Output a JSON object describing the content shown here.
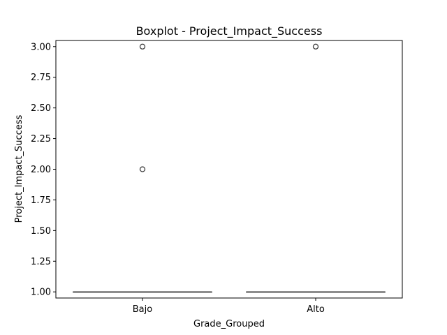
{
  "chart_data": {
    "type": "boxplot",
    "title": "Boxplot - Project_Impact_Success",
    "xlabel": "Grade_Grouped",
    "ylabel": "Project_Impact_Success",
    "categories": [
      "Bajo",
      "Alto"
    ],
    "ylim": [
      0.95,
      3.05
    ],
    "yticks": [
      "1.00",
      "1.25",
      "1.50",
      "1.75",
      "2.00",
      "2.25",
      "2.50",
      "2.75",
      "3.00"
    ],
    "grid": false,
    "boxes": [
      {
        "category": "Bajo",
        "q1": 1.0,
        "median": 1.0,
        "q3": 1.0,
        "whisker_low": 1.0,
        "whisker_high": 1.0,
        "outliers": [
          2.0,
          3.0
        ]
      },
      {
        "category": "Alto",
        "q1": 1.0,
        "median": 1.0,
        "q3": 1.0,
        "whisker_low": 1.0,
        "whisker_high": 1.0,
        "outliers": [
          3.0
        ]
      }
    ],
    "colors": {
      "box_edge": "#3d3d3d",
      "axes": "#000000",
      "background": "#ffffff"
    }
  }
}
